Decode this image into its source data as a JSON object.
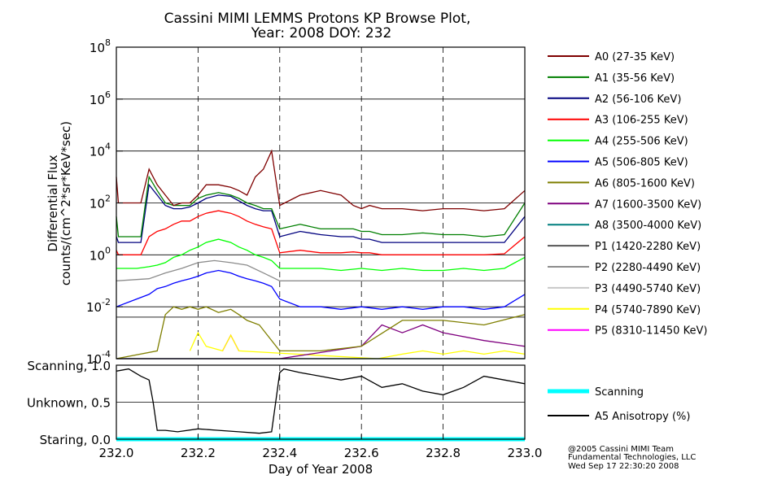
{
  "title_line1": "Cassini MIMI LEMMS Protons KP Browse Plot,",
  "title_line2": "Year: 2008 DOY: 232",
  "chart_data": [
    {
      "type": "line",
      "panel": "flux",
      "ylabel_line1": "Differential Flux",
      "ylabel_line2": "counts/(cm^2*sr*KeV*sec)",
      "yscale": "log",
      "ylim": [
        0.0001,
        100000000
      ],
      "yticks": [
        {
          "value": 0.0001,
          "base": "10",
          "exp": "-4"
        },
        {
          "value": 0.01,
          "base": "10",
          "exp": "-2"
        },
        {
          "value": 1,
          "base": "10",
          "exp": "0"
        },
        {
          "value": 100,
          "base": "10",
          "exp": "2"
        },
        {
          "value": 10000,
          "base": "10",
          "exp": "4"
        },
        {
          "value": 1000000,
          "base": "10",
          "exp": "6"
        },
        {
          "value": 100000000,
          "base": "10",
          "exp": "8"
        }
      ],
      "grid": true,
      "legend_position": "right",
      "series": [
        {
          "name": "A0 (27-35 KeV)",
          "color": "#7f0000",
          "x": [
            232.0,
            232.005,
            232.06,
            232.08,
            232.1,
            232.12,
            232.14,
            232.16,
            232.18,
            232.2,
            232.22,
            232.25,
            232.28,
            232.3,
            232.32,
            232.34,
            232.36,
            232.38,
            232.4,
            232.45,
            232.5,
            232.55,
            232.58,
            232.6,
            232.62,
            232.65,
            232.7,
            232.75,
            232.8,
            232.85,
            232.9,
            232.95,
            233.0
          ],
          "y": [
            1000,
            100,
            100,
            2000,
            500,
            200,
            80,
            100,
            100,
            200,
            500,
            500,
            400,
            300,
            200,
            1000,
            2000,
            10000,
            80,
            200,
            300,
            200,
            80,
            60,
            80,
            60,
            60,
            50,
            60,
            60,
            50,
            60,
            300
          ]
        },
        {
          "name": "A1 (35-56 KeV)",
          "color": "#007f00",
          "x": [
            232.0,
            232.005,
            232.06,
            232.08,
            232.1,
            232.12,
            232.14,
            232.16,
            232.18,
            232.2,
            232.22,
            232.25,
            232.28,
            232.3,
            232.32,
            232.34,
            232.36,
            232.38,
            232.4,
            232.45,
            232.5,
            232.55,
            232.58,
            232.6,
            232.62,
            232.65,
            232.7,
            232.75,
            232.8,
            232.85,
            232.9,
            232.95,
            233.0
          ],
          "y": [
            30,
            5,
            5,
            1000,
            300,
            100,
            80,
            80,
            80,
            150,
            200,
            250,
            200,
            150,
            100,
            80,
            60,
            60,
            10,
            15,
            10,
            10,
            10,
            8,
            8,
            6,
            6,
            7,
            6,
            6,
            5,
            6,
            100
          ]
        },
        {
          "name": "A2 (56-106 KeV)",
          "color": "#00007f",
          "x": [
            232.0,
            232.005,
            232.06,
            232.08,
            232.1,
            232.12,
            232.14,
            232.16,
            232.18,
            232.2,
            232.22,
            232.25,
            232.28,
            232.3,
            232.32,
            232.34,
            232.36,
            232.38,
            232.4,
            232.45,
            232.5,
            232.55,
            232.58,
            232.6,
            232.62,
            232.65,
            232.7,
            232.75,
            232.8,
            232.85,
            232.9,
            232.95,
            233.0
          ],
          "y": [
            5,
            3,
            3,
            500,
            200,
            80,
            60,
            60,
            70,
            100,
            150,
            200,
            180,
            120,
            80,
            60,
            50,
            50,
            5,
            8,
            6,
            5,
            5,
            4,
            4,
            3,
            3,
            3,
            3,
            3,
            3,
            3,
            30
          ]
        },
        {
          "name": "A3 (106-255 KeV)",
          "color": "#ff0000",
          "x": [
            232.0,
            232.005,
            232.06,
            232.08,
            232.1,
            232.12,
            232.14,
            232.16,
            232.18,
            232.2,
            232.22,
            232.25,
            232.28,
            232.3,
            232.32,
            232.34,
            232.36,
            232.38,
            232.4,
            232.45,
            232.5,
            232.55,
            232.58,
            232.6,
            232.62,
            232.65,
            232.7,
            232.75,
            232.8,
            232.85,
            232.9,
            232.95,
            233.0
          ],
          "y": [
            1.5,
            1,
            1,
            5,
            8,
            10,
            15,
            20,
            20,
            30,
            40,
            50,
            40,
            30,
            20,
            15,
            12,
            10,
            1.2,
            1.5,
            1.2,
            1.2,
            1.3,
            1.2,
            1.2,
            1,
            1,
            1,
            1,
            1,
            1,
            1.1,
            5
          ]
        },
        {
          "name": "A4 (255-506 KeV)",
          "color": "#00ff00",
          "x": [
            232.0,
            232.05,
            232.08,
            232.1,
            232.12,
            232.14,
            232.16,
            232.18,
            232.2,
            232.22,
            232.25,
            232.28,
            232.3,
            232.32,
            232.34,
            232.36,
            232.38,
            232.4,
            232.45,
            232.5,
            232.55,
            232.6,
            232.65,
            232.7,
            232.75,
            232.8,
            232.85,
            232.9,
            232.95,
            233.0
          ],
          "y": [
            0.3,
            0.3,
            0.35,
            0.4,
            0.5,
            0.8,
            1,
            1.5,
            2,
            3,
            4,
            3,
            2,
            1.5,
            1,
            0.8,
            0.6,
            0.3,
            0.3,
            0.3,
            0.25,
            0.3,
            0.25,
            0.3,
            0.25,
            0.25,
            0.3,
            0.25,
            0.3,
            0.8
          ]
        },
        {
          "name": "A5 (506-805 KeV)",
          "color": "#0000ff",
          "x": [
            232.0,
            232.05,
            232.08,
            232.1,
            232.12,
            232.14,
            232.16,
            232.18,
            232.2,
            232.22,
            232.25,
            232.28,
            232.3,
            232.32,
            232.34,
            232.36,
            232.38,
            232.4,
            232.45,
            232.5,
            232.55,
            232.6,
            232.65,
            232.7,
            232.75,
            232.8,
            232.85,
            232.9,
            232.95,
            233.0
          ],
          "y": [
            0.01,
            0.02,
            0.03,
            0.05,
            0.06,
            0.08,
            0.1,
            0.12,
            0.15,
            0.2,
            0.25,
            0.2,
            0.15,
            0.12,
            0.1,
            0.08,
            0.06,
            0.02,
            0.01,
            0.01,
            0.008,
            0.01,
            0.008,
            0.01,
            0.008,
            0.01,
            0.01,
            0.008,
            0.01,
            0.03
          ]
        },
        {
          "name": "A6 (805-1600 KeV)",
          "color": "#7f7f00",
          "x": [
            232.0,
            232.1,
            232.12,
            232.14,
            232.16,
            232.18,
            232.2,
            232.22,
            232.25,
            232.28,
            232.3,
            232.32,
            232.35,
            232.4,
            232.5,
            232.6,
            232.7,
            232.8,
            232.9,
            233.0
          ],
          "y": [
            0.0001,
            0.0002,
            0.005,
            0.01,
            0.008,
            0.01,
            0.008,
            0.01,
            0.006,
            0.008,
            0.005,
            0.003,
            0.002,
            0.0002,
            0.0002,
            0.0003,
            0.003,
            0.003,
            0.002,
            0.005
          ]
        },
        {
          "name": "A7 (1600-3500 KeV)",
          "color": "#7f007f",
          "x": [
            232.0,
            232.2,
            232.4,
            232.6,
            232.65,
            232.7,
            232.75,
            232.8,
            232.9,
            233.0
          ],
          "y": [
            0.0001,
            0.0001,
            0.0001,
            0.0003,
            0.002,
            0.001,
            0.002,
            0.001,
            0.0005,
            0.0003
          ]
        },
        {
          "name": "A8 (3500-4000 KeV)",
          "color": "#007f7f",
          "x": [
            232.0,
            233.0
          ],
          "y": [
            0.0001,
            0.0001
          ]
        },
        {
          "name": "P1 (1420-2280 KeV)",
          "color": "#555555",
          "x": [
            232.0,
            232.1,
            232.2,
            232.3,
            232.4,
            232.5,
            232.6,
            232.7,
            232.8,
            232.9,
            233.0
          ],
          "y": [
            0.004,
            0.004,
            0.004,
            0.004,
            0.004,
            0.004,
            0.004,
            0.004,
            0.004,
            0.004,
            0.004
          ]
        },
        {
          "name": "P2 (2280-4490 KeV)",
          "color": "#8c8c8c",
          "x": [
            232.0,
            232.08,
            232.12,
            232.16,
            232.2,
            232.24,
            232.28,
            232.32,
            232.36,
            232.4,
            232.5,
            232.6,
            232.7,
            232.8,
            232.9,
            233.0
          ],
          "y": [
            0.1,
            0.12,
            0.2,
            0.3,
            0.5,
            0.6,
            0.5,
            0.4,
            0.2,
            0.1,
            0.1,
            0.1,
            0.1,
            0.1,
            0.1,
            0.1
          ]
        },
        {
          "name": "P3 (4490-5740 KeV)",
          "color": "#c8c8c8",
          "x": [
            232.0,
            232.5,
            233.0
          ],
          "y": [
            0.0001,
            0.0001,
            0.0001
          ]
        },
        {
          "name": "P4 (5740-7890 KeV)",
          "color": "#ffff00",
          "x": [
            232.18,
            232.2,
            232.22,
            232.26,
            232.28,
            232.3,
            232.64,
            232.7,
            232.75,
            232.8,
            232.85,
            232.9,
            232.95,
            233.0
          ],
          "y": [
            0.0002,
            0.001,
            0.0003,
            0.0002,
            0.0008,
            0.0002,
            0.0001,
            0.00015,
            0.0002,
            0.00015,
            0.0002,
            0.00015,
            0.0002,
            0.00015
          ]
        },
        {
          "name": "P5 (8310-11450 KeV)",
          "color": "#ff00ff",
          "x": [
            232.26,
            232.28,
            232.3
          ],
          "y": [
            0.0002,
            0.0008,
            0.0002
          ]
        }
      ]
    },
    {
      "type": "line",
      "panel": "anisotropy",
      "xlabel": "Day of Year 2008",
      "xlim": [
        232.0,
        233.0
      ],
      "xticks": [
        232.0,
        232.2,
        232.4,
        232.6,
        232.8,
        233.0
      ],
      "xtick_labels": [
        "232.0",
        "232.2",
        "232.4",
        "232.6",
        "232.8",
        "233.0"
      ],
      "ylim": [
        0.0,
        1.0
      ],
      "yticks": [
        {
          "value": 1.0,
          "label": "Scanning, 1.0"
        },
        {
          "value": 0.5,
          "label": "Unknown, 0.5"
        },
        {
          "value": 0.0,
          "label": "Staring, 0.0"
        }
      ],
      "grid": true,
      "legend_position": "right",
      "series": [
        {
          "name": "Scanning",
          "color": "#00ffff",
          "x": [
            232.0,
            233.0
          ],
          "y": [
            0.0,
            0.0
          ]
        },
        {
          "name": "A5 Anisotropy (%)",
          "color": "#000000",
          "x": [
            232.0,
            232.03,
            232.06,
            232.08,
            232.09,
            232.1,
            232.12,
            232.15,
            232.2,
            232.25,
            232.3,
            232.35,
            232.38,
            232.39,
            232.4,
            232.41,
            232.45,
            232.5,
            232.55,
            232.6,
            232.65,
            232.7,
            232.75,
            232.8,
            232.85,
            232.9,
            232.95,
            233.0
          ],
          "y": [
            0.92,
            0.95,
            0.85,
            0.8,
            0.5,
            0.12,
            0.12,
            0.1,
            0.14,
            0.12,
            0.1,
            0.08,
            0.1,
            0.5,
            0.9,
            0.95,
            0.9,
            0.85,
            0.8,
            0.85,
            0.7,
            0.75,
            0.65,
            0.6,
            0.7,
            0.85,
            0.8,
            0.75
          ]
        }
      ]
    }
  ],
  "credits": {
    "line1": "@2005 Cassini MIMI Team",
    "line2": "Fundamental Technologies, LLC",
    "line3": "Wed Sep 17 22:30:20 2008"
  }
}
